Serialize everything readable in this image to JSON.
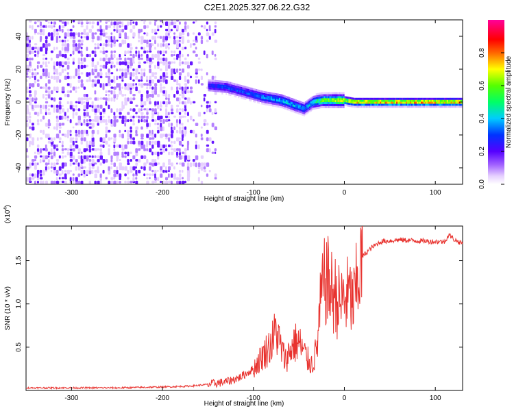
{
  "figure": {
    "title": "C2E1.2025.327.06.22.G32"
  },
  "chart_data": [
    {
      "type": "heatmap",
      "title": "C2E1.2025.327.06.22.G32",
      "xlabel": "Height of straight line (km)",
      "ylabel": "Frequency (Hz)",
      "xlim": [
        -350,
        130
      ],
      "ylim": [
        -50,
        50
      ],
      "xticks": [
        -300,
        -200,
        -100,
        0,
        100
      ],
      "yticks": [
        -40,
        -20,
        0,
        20,
        40
      ],
      "colorbar": {
        "label": "Normalized spectral amplitude",
        "range": [
          0.0,
          1.0
        ],
        "ticks": [
          0.0,
          0.2,
          0.4,
          0.6,
          0.8
        ],
        "colormap": "white-purple-blue-cyan-green-yellow-red-magenta"
      },
      "signal_trace": {
        "x": [
          -150,
          -130,
          -110,
          -90,
          -70,
          -55,
          -45,
          -35,
          -25,
          -10,
          0,
          10,
          50,
          100,
          130
        ],
        "y": [
          10,
          9,
          6,
          3,
          1,
          -2,
          -4,
          0,
          1,
          1,
          1,
          0,
          0,
          0,
          0
        ],
        "amplitude": [
          0.3,
          0.35,
          0.35,
          0.4,
          0.45,
          0.45,
          0.4,
          0.5,
          0.65,
          0.75,
          0.8,
          0.85,
          0.9,
          0.9,
          0.9
        ]
      },
      "noise_region": {
        "x_range": [
          -350,
          -140
        ],
        "amplitude": 0.2
      }
    },
    {
      "type": "line",
      "xlabel": "Height of straight line (km)",
      "ylabel": "SNR (10 * v/v)",
      "y_multiplier": "(x10",
      "y_multiplier_exp": "4",
      "y_multiplier_close": ")",
      "xlim": [
        -350,
        130
      ],
      "ylim": [
        0,
        1.9
      ],
      "xticks": [
        -300,
        -200,
        -100,
        0,
        100
      ],
      "yticks": [
        0.5,
        1.0,
        1.5
      ],
      "color": "#e8322e",
      "series": [
        {
          "x": [
            -350,
            -300,
            -250,
            -200,
            -170,
            -150,
            -130,
            -115,
            -100,
            -90,
            -80,
            -75,
            -70,
            -65,
            -60,
            -55,
            -50,
            -45,
            -40,
            -35,
            -30,
            -27,
            -25,
            -20,
            -15,
            -10,
            -5,
            0,
            5,
            10,
            15,
            20,
            30,
            40,
            60,
            80,
            100,
            110,
            115,
            120,
            125,
            130
          ],
          "y": [
            0.03,
            0.03,
            0.03,
            0.04,
            0.05,
            0.07,
            0.1,
            0.15,
            0.25,
            0.4,
            0.55,
            0.7,
            0.5,
            0.35,
            0.45,
            0.55,
            0.55,
            0.45,
            0.35,
            0.3,
            0.5,
            0.9,
            1.1,
            1.3,
            1.15,
            1.1,
            1.0,
            1.05,
            1.1,
            1.0,
            1.3,
            1.55,
            1.65,
            1.72,
            1.74,
            1.73,
            1.72,
            1.72,
            1.8,
            1.75,
            1.72,
            1.7
          ]
        }
      ]
    }
  ]
}
